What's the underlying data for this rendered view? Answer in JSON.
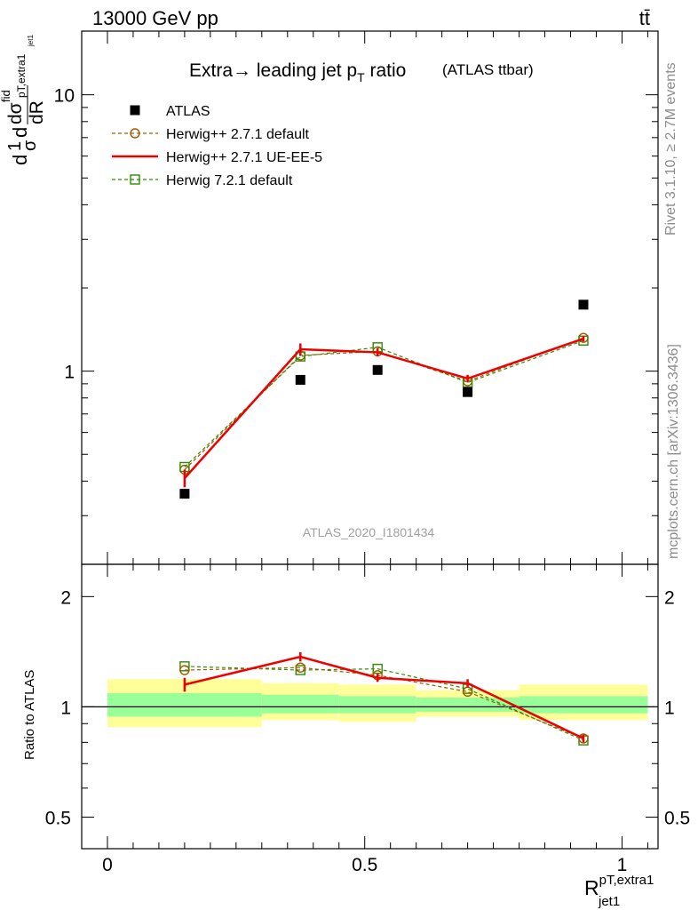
{
  "header": {
    "left": "13000 GeV pp",
    "right": "tt̄"
  },
  "side_labels": {
    "rivet": "Rivet 3.1.10, ≥ 2.7M events",
    "mcplots": "mcplots.cern.ch [arXiv:1306.3436]"
  },
  "colors": {
    "atlas": "#000000",
    "herwig_pp_default": "#a05a00",
    "herwig_pp_ueee5": "#ee0000",
    "herwig7_default": "#2e8b00",
    "band_outer": "#ffff99",
    "band_inner": "#99ff99"
  },
  "chart_data": [
    {
      "type": "line",
      "title": "Extra → leading jet pT ratio",
      "title_main": "Extra",
      "title_arrow": "→",
      "title_rest": " leading jet p",
      "title_sub": "T",
      "title_end": " ratio",
      "title_suffix": "(ATLAS ttbar)",
      "ylabel": "1/σ dσ^fid/dR",
      "ylabel_parts": {
        "d1": "d",
        "one": "1",
        "sigma": "σ",
        "d2": "d",
        "dsig": "dσ",
        "fid": "fid",
        "sub": "pT,extra1",
        "sub2": "jet1",
        "dR": "dR"
      },
      "watermark": "ATLAS_2020_I1801434",
      "yscale": "log",
      "ylim": [
        0.2,
        17
      ],
      "xlim": [
        -0.05,
        1.07
      ],
      "yticks_labeled": [
        {
          "v": 1,
          "label": "1"
        },
        {
          "v": 10,
          "label": "10"
        }
      ],
      "legend_position": "top-left",
      "x": [
        0.15,
        0.375,
        0.525,
        0.7,
        0.925
      ],
      "series": [
        {
          "name": "ATLAS",
          "key": "atlas",
          "style": "points",
          "values": [
            0.36,
            0.93,
            1.01,
            0.84,
            1.74
          ]
        },
        {
          "name": "Herwig++ 2.7.1 default",
          "key": "herwig_pp_default",
          "style": "dashed-circle",
          "values": [
            0.44,
            1.14,
            1.18,
            0.92,
            1.32
          ]
        },
        {
          "name": "Herwig++ 2.7.1 UE-EE-5",
          "key": "herwig_pp_ueee5",
          "style": "solid",
          "values": [
            0.41,
            1.2,
            1.17,
            0.94,
            1.31
          ],
          "errors": [
            0.03,
            0.06,
            0.04,
            0.03,
            0.03
          ]
        },
        {
          "name": "Herwig 7.2.1 default",
          "key": "herwig7_default",
          "style": "dashed-square",
          "values": [
            0.45,
            1.13,
            1.22,
            0.91,
            1.29
          ]
        }
      ]
    },
    {
      "type": "line",
      "ylabel": "Ratio to ATLAS",
      "xlabel": "R_jet1^pT,extra1",
      "xlabel_parts": {
        "main": "R",
        "sup": "pT,extra1",
        "sub": "jet1"
      },
      "ylim": [
        0.41,
        2.45
      ],
      "yscale": "log",
      "yticks_labeled": [
        {
          "v": 0.5,
          "label": "0.5"
        },
        {
          "v": 1,
          "label": "1"
        },
        {
          "v": 2,
          "label": "2"
        }
      ],
      "xticks_labeled": [
        {
          "v": 0,
          "label": "0"
        },
        {
          "v": 0.5,
          "label": "0.5"
        },
        {
          "v": 1,
          "label": "1"
        }
      ],
      "x": [
        0.15,
        0.375,
        0.525,
        0.7,
        0.925
      ],
      "bands": [
        {
          "x0": 0.0,
          "x1": 0.3,
          "outer": [
            0.88,
            1.19
          ],
          "inner": [
            0.94,
            1.09
          ]
        },
        {
          "x0": 0.3,
          "x1": 0.45,
          "outer": [
            0.92,
            1.16
          ],
          "inner": [
            0.96,
            1.08
          ]
        },
        {
          "x0": 0.45,
          "x1": 0.6,
          "outer": [
            0.91,
            1.15
          ],
          "inner": [
            0.96,
            1.07
          ]
        },
        {
          "x0": 0.6,
          "x1": 0.8,
          "outer": [
            0.94,
            1.11
          ],
          "inner": [
            0.97,
            1.06
          ]
        },
        {
          "x0": 0.8,
          "x1": 1.05,
          "outer": [
            0.92,
            1.15
          ],
          "inner": [
            0.96,
            1.07
          ]
        }
      ],
      "series": [
        {
          "name": "Herwig++ 2.7.1 default",
          "key": "herwig_pp_default",
          "style": "dashed-circle",
          "values": [
            1.26,
            1.28,
            1.22,
            1.1,
            0.82
          ]
        },
        {
          "name": "Herwig++ 2.7.1 UE-EE-5",
          "key": "herwig_pp_ueee5",
          "style": "solid",
          "values": [
            1.15,
            1.37,
            1.2,
            1.16,
            0.82
          ],
          "errors": [
            0.05,
            0.04,
            0.03,
            0.03,
            0.02
          ]
        },
        {
          "name": "Herwig 7.2.1 default",
          "key": "herwig7_default",
          "style": "dashed-square",
          "values": [
            1.29,
            1.26,
            1.27,
            1.12,
            0.81
          ]
        }
      ]
    }
  ]
}
